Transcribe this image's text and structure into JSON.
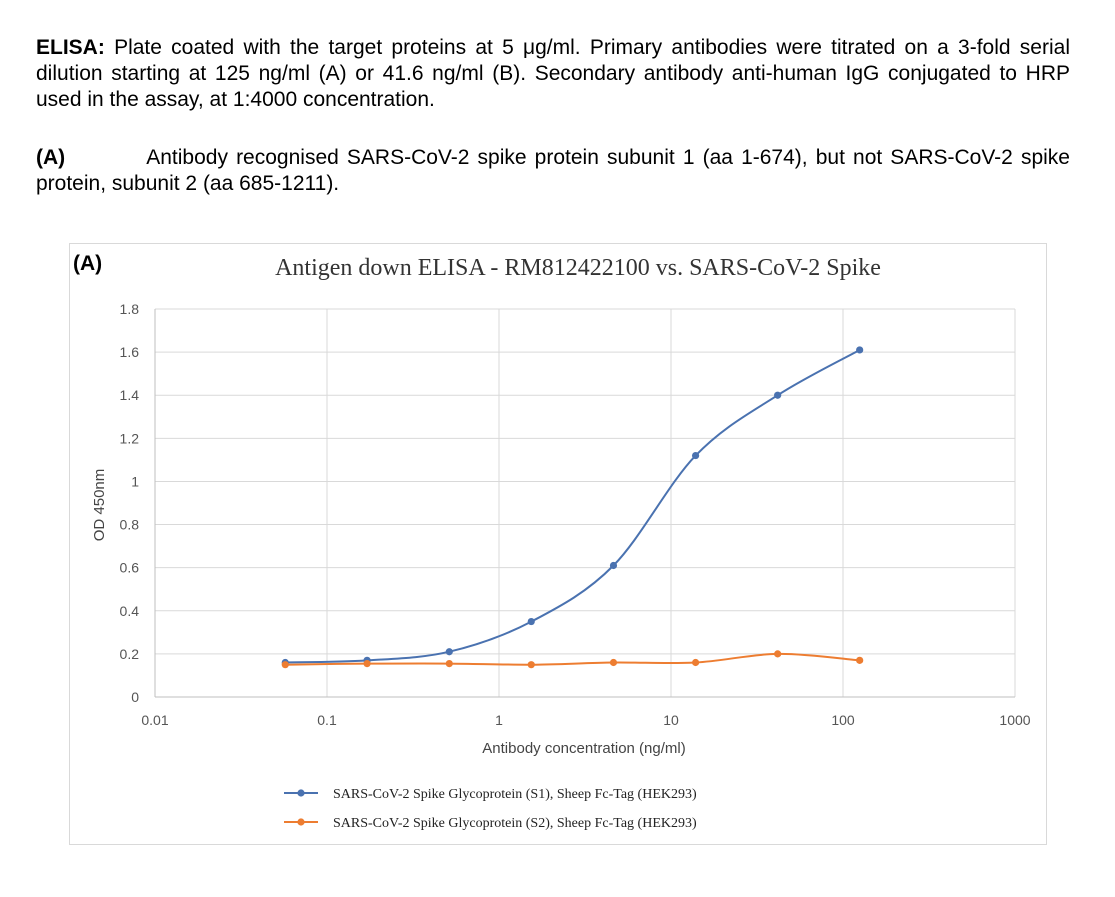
{
  "caption": {
    "elisa_label": "ELISA:",
    "elisa_text": "Plate coated with the target proteins at 5 μg/ml. Primary antibodies were titrated on a 3-fold serial dilution starting at 125 ng/ml (A) or 41.6 ng/ml (B). Secondary antibody anti-human IgG conjugated to HRP used in the assay, at 1:4000 concentration.",
    "a_label": "(A)",
    "a_text": "Antibody recognised SARS-CoV-2 spike protein subunit 1 (aa 1-674), but not SARS-CoV-2 spike protein, subunit 2 (aa 685-1211)."
  },
  "chart_data": {
    "type": "line",
    "panel_label": "(A)",
    "title": "Antigen down ELISA - RM812422100 vs. SARS-CoV-2 Spike",
    "xlabel": "Antibody concentration (ng/ml)",
    "ylabel": "OD 450nm",
    "xscale": "log",
    "xlim": [
      0.01,
      1000
    ],
    "ylim": [
      0,
      1.8
    ],
    "xticks": [
      0.01,
      0.1,
      1,
      10,
      100,
      1000
    ],
    "xtick_labels": [
      "0.01",
      "0.1",
      "1",
      "10",
      "100",
      "1000"
    ],
    "yticks": [
      0,
      0.2,
      0.4,
      0.6,
      0.8,
      1,
      1.2,
      1.4,
      1.6,
      1.8
    ],
    "ytick_labels": [
      "0",
      "0.2",
      "0.4",
      "0.6",
      "0.8",
      "1",
      "1.2",
      "1.4",
      "1.6",
      "1.8"
    ],
    "grid": true,
    "legend_position": "bottom",
    "x": [
      0.0572,
      0.171,
      0.514,
      1.54,
      4.63,
      13.9,
      41.7,
      125
    ],
    "series": [
      {
        "name": "SARS-CoV-2 Spike Glycoprotein (S1), Sheep Fc-Tag (HEK293)",
        "color": "#4a72b0",
        "values": [
          0.16,
          0.17,
          0.21,
          0.35,
          0.61,
          1.12,
          1.4,
          1.61
        ]
      },
      {
        "name": "SARS-CoV-2 Spike Glycoprotein (S2), Sheep Fc-Tag (HEK293)",
        "color": "#ed7d31",
        "values": [
          0.15,
          0.155,
          0.155,
          0.15,
          0.16,
          0.16,
          0.2,
          0.17
        ]
      }
    ]
  }
}
